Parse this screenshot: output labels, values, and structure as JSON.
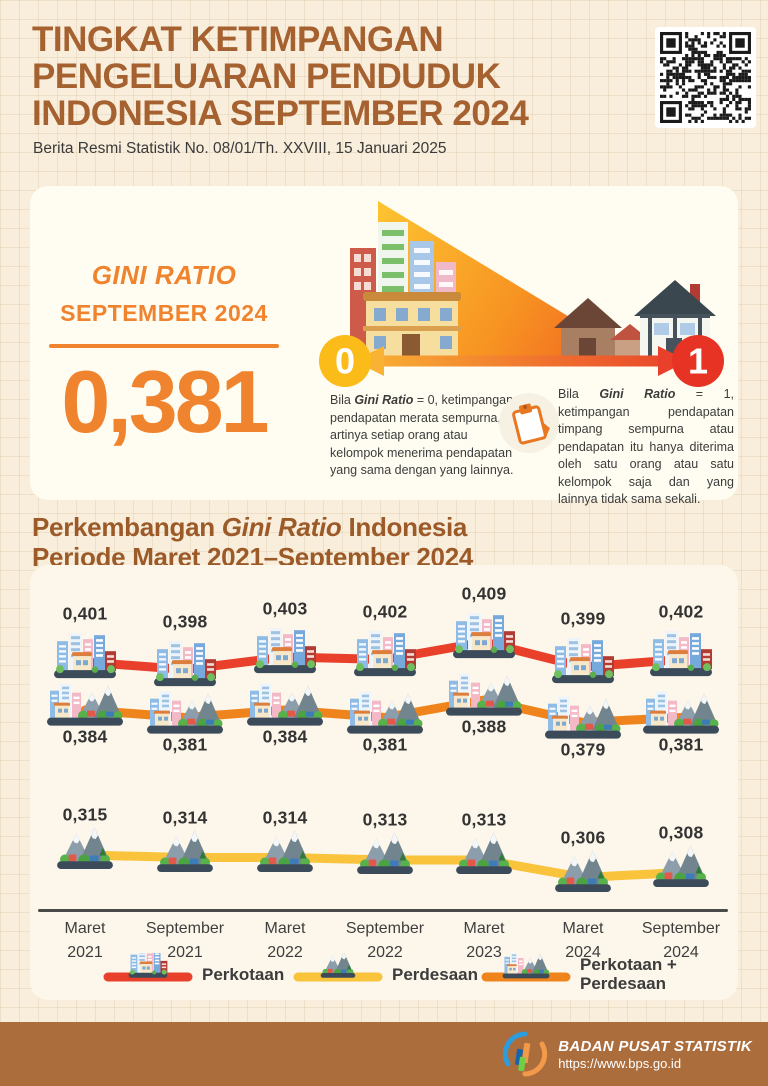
{
  "header": {
    "title": "TINGKAT KETIMPANGAN\nPENGELUARAN PENDUDUK\nINDONESIA SEPTEMBER 2024",
    "subtitle": "Berita Resmi Statistik No. 08/01/Th. XXVIII, 15 Januari 2025"
  },
  "hero": {
    "label_line1": "GINI RATIO",
    "label_line2": "SEPTEMBER 2024",
    "value": "0,381",
    "scale_min": "0",
    "scale_max": "1",
    "note_left": {
      "pre": "Bila ",
      "italic": "Gini Ratio",
      "post": " = 0, ketimpangan pendapatan merata sempurna, artinya setiap orang atau kelompok menerima pendapatan yang sama dengan yang lainnya."
    },
    "note_right": {
      "pre": "Bila ",
      "italic": "Gini Ratio",
      "post": " = 1, ketimpangan pendapatan timpang sempurna atau pendapatan itu hanya diterima oleh satu orang atau satu kelompok saja dan yang lainnya tidak sama sekali."
    }
  },
  "section": {
    "heading_pre": "Perkembangan ",
    "heading_italic": "Gini Ratio",
    "heading_post": " Indonesia",
    "heading_line2": "Periode Maret 2021–September 2024"
  },
  "chart_data": {
    "type": "line",
    "title": "Perkembangan Gini Ratio Indonesia Periode Maret 2021-September 2024",
    "categories": [
      "Maret\n2021",
      "September\n2021",
      "Maret\n2022",
      "September\n2022",
      "Maret\n2023",
      "Maret\n2024",
      "September\n2024"
    ],
    "series": [
      {
        "name": "Perkotaan",
        "color": "#E8402A",
        "icon": "city",
        "values": [
          0.401,
          0.398,
          0.403,
          0.402,
          0.409,
          0.399,
          0.402
        ]
      },
      {
        "name": "Perkotaan + Perdesaan",
        "color": "#F0841C",
        "icon": "combo",
        "values": [
          0.384,
          0.381,
          0.384,
          0.381,
          0.388,
          0.379,
          0.381
        ]
      },
      {
        "name": "Perdesaan",
        "color": "#F9C33C",
        "icon": "mountain",
        "values": [
          0.315,
          0.314,
          0.314,
          0.313,
          0.313,
          0.306,
          0.308
        ]
      }
    ],
    "legend": [
      {
        "label": "Perkotaan",
        "color": "#E8402A",
        "icon": "city"
      },
      {
        "label": "Perdesaan",
        "color": "#F9C33C",
        "icon": "mountain"
      },
      {
        "label": "Perkotaan +\nPerdesaan",
        "color": "#F0841C",
        "icon": "combo"
      }
    ],
    "decimal_separator": ",",
    "ylim": [
      0.3,
      0.41
    ],
    "grid": false,
    "legend_position": "bottom"
  },
  "footer": {
    "org": "BADAN PUSAT STATISTIK",
    "url": "https://www.bps.go.id"
  }
}
